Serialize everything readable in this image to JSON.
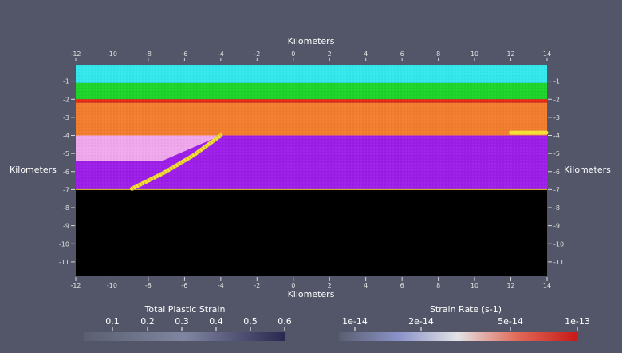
{
  "axes": {
    "top_label": "Kilometers",
    "bottom_label": "Kilometers",
    "left_label": "Kilometers",
    "right_label": "Kilometers",
    "x_range": [
      -12,
      14
    ],
    "y_range": [
      -11.8,
      0
    ],
    "x_ticks": [
      "-12",
      "-10",
      "-8",
      "-6",
      "-4",
      "-2",
      "0",
      "2",
      "4",
      "6",
      "8",
      "10",
      "12",
      "14"
    ],
    "y_ticks": [
      "-1",
      "-2",
      "-3",
      "-4",
      "-5",
      "-6",
      "-7",
      "-8",
      "-9",
      "-10",
      "-11"
    ]
  },
  "layers": [
    {
      "name": "cyan-layer",
      "top": -0.1,
      "bottom": -1.1,
      "color": "#33e8ec"
    },
    {
      "name": "green-layer",
      "top": -1.1,
      "bottom": -2.0,
      "color": "#1ed42a"
    },
    {
      "name": "red-layer",
      "top": -2.0,
      "bottom": -2.2,
      "color": "#e82a14"
    },
    {
      "name": "orange-layer",
      "top": -2.2,
      "bottom": -4.0,
      "color": "#f27d2e"
    },
    {
      "name": "purple-layer",
      "top": -4.0,
      "bottom": -7.0,
      "color": "#9d1ee8"
    },
    {
      "name": "black-basement",
      "top": -7.0,
      "bottom": -11.8,
      "color": "#000000"
    }
  ],
  "pink_wedge": {
    "color": "#efa8ec",
    "points": [
      [
        -12,
        -4.0
      ],
      [
        -4.0,
        -4.0
      ],
      [
        -7.2,
        -5.4
      ],
      [
        -12,
        -5.4
      ]
    ]
  },
  "fault": {
    "color": "#f3e03a",
    "points": [
      [
        -4.0,
        -4.0
      ],
      [
        -5.5,
        -5.1
      ],
      [
        -7.2,
        -6.1
      ],
      [
        -8.9,
        -6.95
      ]
    ]
  },
  "right_strain": {
    "color": "#f3e03a",
    "x": [
      12.0,
      14.0
    ],
    "y": -3.85
  },
  "colorbars": [
    {
      "title": "Total Plastic Strain",
      "labels": [
        "0.1",
        "0.2",
        "0.3",
        "0.4",
        "0.5",
        "0.6"
      ],
      "colors": [
        "#5a5f70",
        "#8086a0",
        "#2a2850"
      ]
    },
    {
      "title": "Strain Rate (s-1)",
      "labels": [
        "1e-14",
        "2e-14",
        "5e-14",
        "1e-13"
      ],
      "colors": [
        "#5a5f70",
        "#8a92c8",
        "#e2e2e6",
        "#e06a58",
        "#c81a18"
      ]
    }
  ]
}
